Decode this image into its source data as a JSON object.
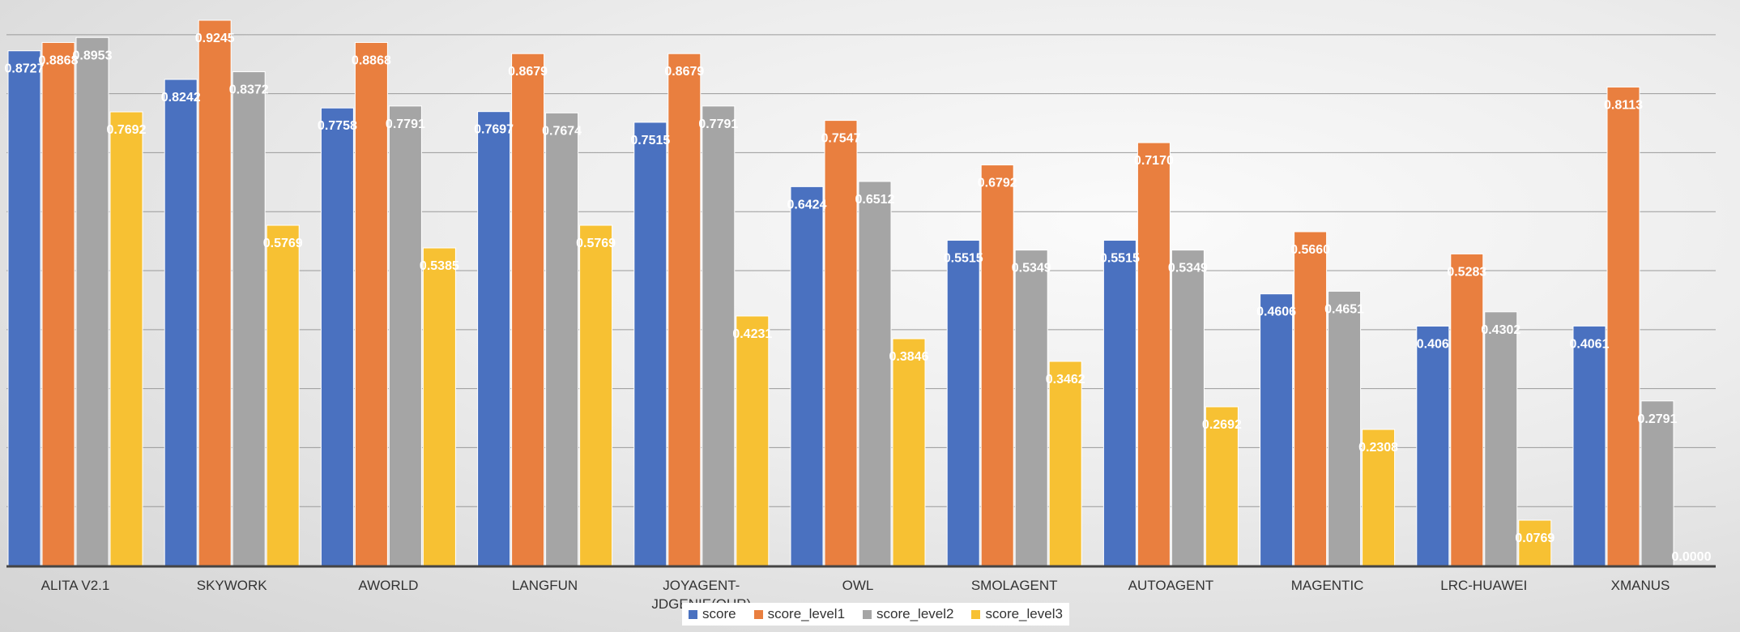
{
  "chart_data": {
    "type": "bar",
    "title": "",
    "xlabel": "",
    "ylabel": "",
    "ylim": [
      0,
      0.95
    ],
    "grid": true,
    "legend_position": "bottom",
    "categories": [
      "ALITA V2.1",
      "SKYWORK",
      "AWORLD",
      "LANGFUN",
      "JOYAGENT-\nJDGENIE(OUR)",
      "OWL",
      "SMOLAGENT",
      "AUTOAGENT",
      "MAGENTIC",
      "LRC-HUAWEI",
      "XMANUS"
    ],
    "series": [
      {
        "name": "score",
        "color": "#4a71c0",
        "values": [
          0.8727,
          0.8242,
          0.7758,
          0.7697,
          0.7515,
          0.6424,
          0.5515,
          0.5515,
          0.4606,
          0.406,
          0.4061
        ],
        "labels": [
          "0.8727",
          "0.8242",
          "0.7758",
          "0.7697",
          "0.7515",
          "0.6424",
          "0.5515",
          "0.5515",
          "0.4606",
          "0.406",
          "0.4061"
        ]
      },
      {
        "name": "score_level1",
        "color": "#e97f3f",
        "values": [
          0.8868,
          0.9245,
          0.8868,
          0.8679,
          0.8679,
          0.7547,
          0.6792,
          0.717,
          0.566,
          0.5283,
          0.8113
        ],
        "labels": [
          "0.8868",
          "0.9245",
          "0.8868",
          "0.8679",
          "0.8679",
          "0.7547",
          "0.6792",
          "0.7170",
          "0.5660",
          "0.5283",
          "0.8113"
        ]
      },
      {
        "name": "score_level2",
        "color": "#a5a5a5",
        "values": [
          0.8953,
          0.8372,
          0.7791,
          0.7674,
          0.7791,
          0.6512,
          0.5349,
          0.5349,
          0.4651,
          0.4302,
          0.2791
        ],
        "labels": [
          "0.8953",
          "0.8372",
          "0.7791",
          "0.7674",
          "0.7791",
          "0.6512",
          "0.5349",
          "0.5349",
          "0.4651",
          "0.4302",
          "0.2791"
        ]
      },
      {
        "name": "score_level3",
        "color": "#f7c133",
        "values": [
          0.7692,
          0.5769,
          0.5385,
          0.5769,
          0.4231,
          0.3846,
          0.3462,
          0.2692,
          0.2308,
          0.0769,
          0.0
        ],
        "labels": [
          "0.7692",
          "0.5769",
          "0.5385",
          "0.5769",
          "0.4231",
          "0.3846",
          "0.3462",
          "0.2692",
          "0.2308",
          "0.0769",
          "0.0000"
        ]
      }
    ]
  }
}
